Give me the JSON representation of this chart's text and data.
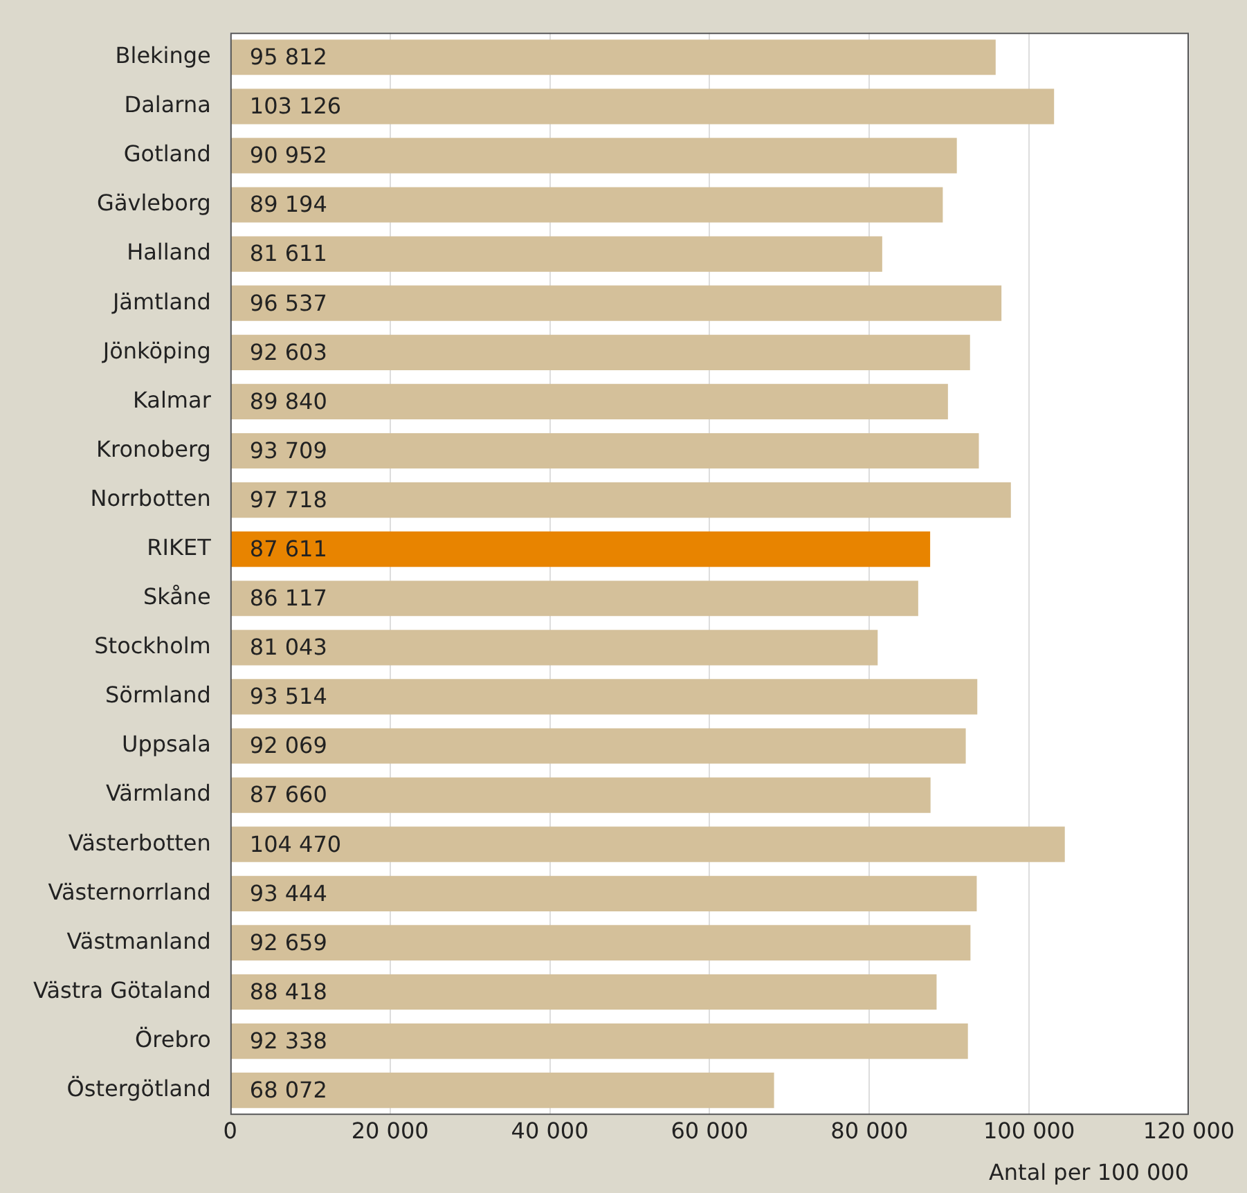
{
  "chart_data": {
    "type": "bar",
    "orientation": "horizontal",
    "xlabel": "Antal per 100 000",
    "categories": [
      "Blekinge",
      "Dalarna",
      "Gotland",
      "Gävleborg",
      "Halland",
      "Jämtland",
      "Jönköping",
      "Kalmar",
      "Kronoberg",
      "Norrbotten",
      "RIKET",
      "Skåne",
      "Stockholm",
      "Sörmland",
      "Uppsala",
      "Värmland",
      "Västerbotten",
      "Västernorrland",
      "Västmanland",
      "Västra Götaland",
      "Örebro",
      "Östergötland"
    ],
    "values": [
      95812,
      103126,
      90952,
      89194,
      81611,
      96537,
      92603,
      89840,
      93709,
      97718,
      87611,
      86117,
      81043,
      93514,
      92069,
      87660,
      104470,
      93444,
      92659,
      88418,
      92338,
      68072
    ],
    "value_labels": [
      "95 812",
      "103 126",
      "90 952",
      "89 194",
      "81 611",
      "96 537",
      "92 603",
      "89 840",
      "93 709",
      "97 718",
      "87 611",
      "86 117",
      "81 043",
      "93 514",
      "92 069",
      "87 660",
      "104 470",
      "93 444",
      "92 659",
      "88 418",
      "92 338",
      "68 072"
    ],
    "colors": [
      "#d4c09a",
      "#d4c09a",
      "#d4c09a",
      "#d4c09a",
      "#d4c09a",
      "#d4c09a",
      "#d4c09a",
      "#d4c09a",
      "#d4c09a",
      "#d4c09a",
      "#e88400",
      "#d4c09a",
      "#d4c09a",
      "#d4c09a",
      "#d4c09a",
      "#d4c09a",
      "#d4c09a",
      "#d4c09a",
      "#d4c09a",
      "#d4c09a",
      "#d4c09a",
      "#d4c09a"
    ],
    "xlim": [
      0,
      120000
    ],
    "xticks": [
      0,
      {
        "value": 20000,
        "label": "20 000"
      },
      {
        "value": 40000,
        "label": "40 000"
      },
      {
        "value": 60000,
        "label": "60 000"
      },
      {
        "value": 80000,
        "label": "80 000"
      },
      {
        "value": 100000,
        "label": "100 000"
      },
      {
        "value": 120000,
        "label": "120 000"
      }
    ],
    "grid": "x",
    "legend": false
  }
}
